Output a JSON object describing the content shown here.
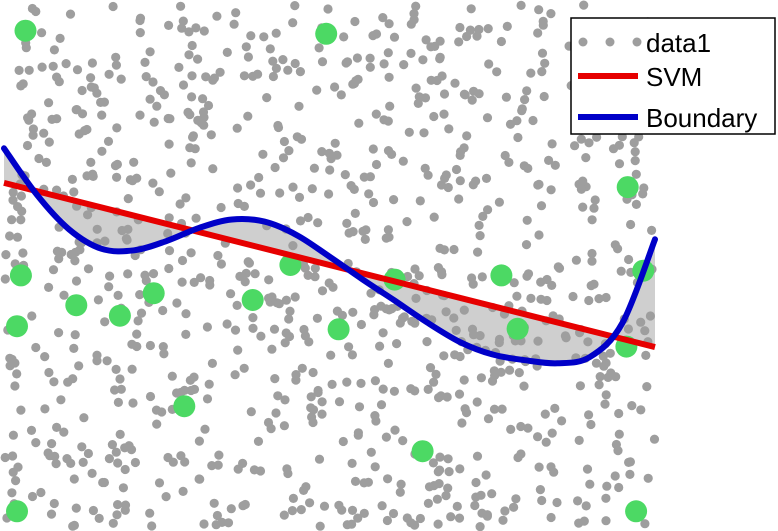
{
  "chart_data": {
    "type": "scatter",
    "title": "",
    "xlabel": "",
    "ylabel": "",
    "xlim": [
      0,
      1
    ],
    "ylim": [
      0,
      1
    ],
    "grid": false,
    "legend": {
      "placement": "top-right",
      "entries": [
        {
          "label": "data1",
          "style": "dots",
          "color": "#9e9e9e"
        },
        {
          "label": "SVM",
          "style": "line",
          "color": "#e60000"
        },
        {
          "label": "Boundary",
          "style": "line",
          "color": "#0000c8"
        }
      ]
    },
    "background_points": {
      "color": "#9e9e9e",
      "count": 1000,
      "x_range": [
        0,
        1
      ],
      "y_range": [
        0,
        1
      ]
    },
    "series": [
      {
        "kind": "scatter",
        "color": "#4cd964",
        "points": [
          [
            0.033,
            0.949
          ],
          [
            0.495,
            0.943
          ],
          [
            0.178,
            0.404
          ],
          [
            0.958,
            0.65
          ],
          [
            0.026,
            0.481
          ],
          [
            0.982,
            0.49
          ],
          [
            0.111,
            0.424
          ],
          [
            0.23,
            0.447
          ],
          [
            0.382,
            0.434
          ],
          [
            0.44,
            0.501
          ],
          [
            0.6,
            0.473
          ],
          [
            0.764,
            0.481
          ],
          [
            0.02,
            0.384
          ],
          [
            0.514,
            0.378
          ],
          [
            0.789,
            0.379
          ],
          [
            0.956,
            0.345
          ],
          [
            0.277,
            0.231
          ],
          [
            0.643,
            0.145
          ],
          [
            0.02,
            0.03
          ],
          [
            0.971,
            0.03
          ]
        ]
      },
      {
        "name": "SVM",
        "kind": "line",
        "color": "#e60000",
        "points": [
          [
            0.0,
            0.658
          ],
          [
            1.0,
            0.344
          ]
        ]
      },
      {
        "name": "Boundary",
        "kind": "line",
        "color": "#0000c8",
        "points": [
          [
            0.0,
            0.724
          ],
          [
            0.05,
            0.636
          ],
          [
            0.1,
            0.569
          ],
          [
            0.15,
            0.532
          ],
          [
            0.2,
            0.529
          ],
          [
            0.25,
            0.547
          ],
          [
            0.3,
            0.572
          ],
          [
            0.35,
            0.588
          ],
          [
            0.4,
            0.584
          ],
          [
            0.45,
            0.558
          ],
          [
            0.5,
            0.517
          ],
          [
            0.55,
            0.474
          ],
          [
            0.6,
            0.433
          ],
          [
            0.65,
            0.391
          ],
          [
            0.7,
            0.354
          ],
          [
            0.75,
            0.33
          ],
          [
            0.8,
            0.319
          ],
          [
            0.85,
            0.313
          ],
          [
            0.9,
            0.325
          ],
          [
            0.95,
            0.39
          ],
          [
            1.0,
            0.55
          ]
        ]
      }
    ]
  }
}
